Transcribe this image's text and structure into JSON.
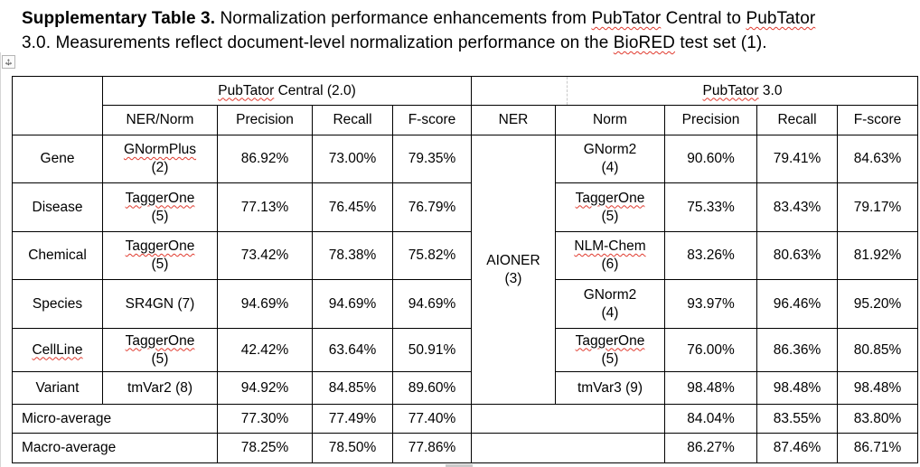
{
  "caption": {
    "line1": [
      {
        "text": "Supplementary Table 3.",
        "bold": true
      },
      {
        "text": " Normalization performance enhancements from "
      },
      {
        "text": "PubTator",
        "misspelled": true
      },
      {
        "text": " Central to "
      },
      {
        "text": "PubTator",
        "misspelled": true
      }
    ],
    "line2": [
      {
        "text": "3.0. Measurements reflect document-level normalization performance on the "
      },
      {
        "text": "BioRED",
        "misspelled": true
      },
      {
        "text": " test set (1)."
      }
    ]
  },
  "table": {
    "group_headers": {
      "pc_brand": "PubTator",
      "pc_brand_misspelled": true,
      "pc_rest": " Central (2.0)",
      "p3_brand": "PubTator",
      "p3_brand_misspelled": true,
      "p3_rest": " 3.0"
    },
    "column_headers": {
      "pc_tool": "NER/Norm",
      "pc_precision": "Precision",
      "pc_recall": "Recall",
      "pc_fscore": "F-score",
      "p3_ner": "NER",
      "p3_norm": "Norm",
      "p3_precision": "Precision",
      "p3_recall": "Recall",
      "p3_fscore": "F-score"
    },
    "ner_merged": {
      "line1": "AIONER",
      "line2": "(3)"
    },
    "rows": [
      {
        "category": "Gene",
        "category_misspelled": false,
        "pc": {
          "tool1": "GNormPlus",
          "tool2": "(2)",
          "tool_misspelled": true,
          "precision": "86.92%",
          "recall": "73.00%",
          "fscore": "79.35%"
        },
        "p3": {
          "norm1": "GNorm2",
          "norm2": "(4)",
          "norm_misspelled": false,
          "precision": "90.60%",
          "recall": "79.41%",
          "fscore": "84.63%"
        }
      },
      {
        "category": "Disease",
        "category_misspelled": false,
        "pc": {
          "tool1": "TaggerOne",
          "tool2": "(5)",
          "tool_misspelled": true,
          "precision": "77.13%",
          "recall": "76.45%",
          "fscore": "76.79%"
        },
        "p3": {
          "norm1": "TaggerOne",
          "norm2": "(5)",
          "norm_misspelled": true,
          "precision": "75.33%",
          "recall": "83.43%",
          "fscore": "79.17%"
        }
      },
      {
        "category": "Chemical",
        "category_misspelled": false,
        "pc": {
          "tool1": "TaggerOne",
          "tool2": "(5)",
          "tool_misspelled": true,
          "precision": "73.42%",
          "recall": "78.38%",
          "fscore": "75.82%"
        },
        "p3": {
          "norm1": "NLM-Chem",
          "norm2": "(6)",
          "norm_misspelled": true,
          "precision": "83.26%",
          "recall": "80.63%",
          "fscore": "81.92%"
        }
      },
      {
        "category": "Species",
        "category_misspelled": false,
        "pc": {
          "tool1": "SR4GN (7)",
          "tool2": "",
          "tool_misspelled": false,
          "precision": "94.69%",
          "recall": "94.69%",
          "fscore": "94.69%"
        },
        "p3": {
          "norm1": "GNorm2",
          "norm2": "(4)",
          "norm_misspelled": false,
          "precision": "93.97%",
          "recall": "96.46%",
          "fscore": "95.20%"
        }
      },
      {
        "category": "CellLine",
        "category_misspelled": true,
        "pc": {
          "tool1": "TaggerOne",
          "tool2": "(5)",
          "tool_misspelled": true,
          "precision": "42.42%",
          "recall": "63.64%",
          "fscore": "50.91%"
        },
        "p3": {
          "norm1": "TaggerOne",
          "norm2": "(5)",
          "norm_misspelled": true,
          "precision": "76.00%",
          "recall": "86.36%",
          "fscore": "80.85%"
        }
      },
      {
        "category": "Variant",
        "category_misspelled": false,
        "pc": {
          "tool1": "tmVar2 (8)",
          "tool2": "",
          "tool_misspelled": false,
          "precision": "94.92%",
          "recall": "84.85%",
          "fscore": "89.60%"
        },
        "p3": {
          "norm1": "tmVar3 (9)",
          "norm2": "",
          "norm_misspelled": false,
          "precision": "98.48%",
          "recall": "98.48%",
          "fscore": "98.48%"
        }
      }
    ],
    "averages": [
      {
        "label": "Micro-average",
        "pc": {
          "precision": "77.30%",
          "recall": "77.49%",
          "fscore": "77.40%"
        },
        "p3": {
          "precision": "84.04%",
          "recall": "83.55%",
          "fscore": "83.80%"
        }
      },
      {
        "label": "Macro-average",
        "pc": {
          "precision": "78.25%",
          "recall": "78.50%",
          "fscore": "77.86%"
        },
        "p3": {
          "precision": "86.27%",
          "recall": "87.46%",
          "fscore": "86.71%"
        }
      }
    ]
  },
  "icons": {
    "move_handle": "table-move-handle-icon",
    "move_handle_glyph_h": "↔",
    "move_handle_glyph_v": "↕"
  },
  "colors": {
    "border": "#000000",
    "squiggle": "#e03a2e",
    "dashed_gridline": "#c9c9c9",
    "text": "#000000",
    "background": "#ffffff"
  }
}
